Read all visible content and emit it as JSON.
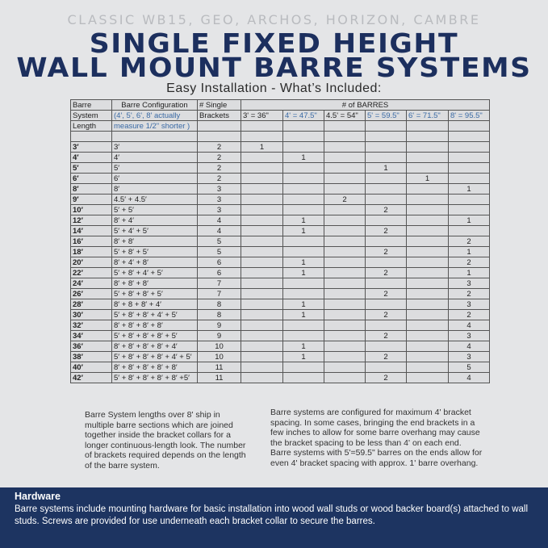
{
  "header": {
    "subtitle": "CLASSIC WB15, GEO, ARCHOS, HORIZON, CAMBRE",
    "title_line1": "SINGLE FIXED HEIGHT",
    "title_line2": "WALL MOUNT BARRE SYSTEMS",
    "section": "Easy Installation - What’s Included:"
  },
  "colors": {
    "navy": "#1c2f5e",
    "blue_text": "#3a6aa5",
    "background": "#e4e5e7"
  },
  "table": {
    "header_rows": [
      [
        "Barre",
        "Barre Configuration",
        "# Single",
        "# of BARRES"
      ],
      [
        "System",
        "(4', 5', 6', 8' actually",
        "Brackets",
        "3' = 36\"",
        "4' = 47.5\"",
        "4.5' = 54\"",
        "5' = 59.5\"",
        "6' = 71.5\"",
        "8' = 95.5\""
      ],
      [
        "Length",
        "measure 1/2\" shorter )"
      ]
    ],
    "rows": [
      [
        "3′",
        "3′",
        "2",
        "1",
        "",
        "",
        "",
        "",
        ""
      ],
      [
        "4′",
        "4′",
        "2",
        "",
        "1",
        "",
        "",
        "",
        ""
      ],
      [
        "5′",
        "5′",
        "2",
        "",
        "",
        "",
        "1",
        "",
        ""
      ],
      [
        "6′",
        "6′",
        "2",
        "",
        "",
        "",
        "",
        "1",
        ""
      ],
      [
        "8′",
        "8′",
        "3",
        "",
        "",
        "",
        "",
        "",
        "1"
      ],
      [
        "9′",
        "4.5′ + 4.5′",
        "3",
        "",
        "",
        "2",
        "",
        "",
        ""
      ],
      [
        "10′",
        "5′ + 5′",
        "3",
        "",
        "",
        "",
        "2",
        "",
        ""
      ],
      [
        "12′",
        "8′ + 4′",
        "4",
        "",
        "1",
        "",
        "",
        "",
        "1"
      ],
      [
        "14′",
        "5′ + 4′ + 5′",
        "4",
        "",
        "1",
        "",
        "2",
        "",
        ""
      ],
      [
        "16′",
        "8′ + 8′",
        "5",
        "",
        "",
        "",
        "",
        "",
        "2"
      ],
      [
        "18′",
        "5′ + 8′ + 5′",
        "5",
        "",
        "",
        "",
        "2",
        "",
        "1"
      ],
      [
        "20′",
        "8′ + 4′ + 8′",
        "6",
        "",
        "1",
        "",
        "",
        "",
        "2"
      ],
      [
        "22′",
        "5′ + 8′ + 4′ + 5′",
        "6",
        "",
        "1",
        "",
        "2",
        "",
        "1"
      ],
      [
        "24′",
        "8′ + 8′ + 8′",
        "7",
        "",
        "",
        "",
        "",
        "",
        "3"
      ],
      [
        "26′",
        "5′ + 8′ + 8′ + 5′",
        "7",
        "",
        "",
        "",
        "2",
        "",
        "2"
      ],
      [
        "28′",
        "8′ + 8 + 8′ + 4′",
        "8",
        "",
        "1",
        "",
        "",
        "",
        "3"
      ],
      [
        "30′",
        "5′ + 8′ + 8′ + 4′ + 5′",
        "8",
        "",
        "1",
        "",
        "2",
        "",
        "2"
      ],
      [
        "32′",
        "8′ + 8′ + 8′ + 8′",
        "9",
        "",
        "",
        "",
        "",
        "",
        "4"
      ],
      [
        "34′",
        "5′ + 8′ + 8′ + 8′ + 5′",
        "9",
        "",
        "",
        "",
        "2",
        "",
        "3"
      ],
      [
        "36′",
        "8′ + 8′ + 8′ + 8′ + 4′",
        "10",
        "",
        "1",
        "",
        "",
        "",
        "4"
      ],
      [
        "38′",
        "5′ + 8′ + 8′ + 8′ + 4′ + 5′",
        "10",
        "",
        "1",
        "",
        "2",
        "",
        "3"
      ],
      [
        "40′",
        "8′ + 8′ + 8′ + 8′ + 8′",
        "11",
        "",
        "",
        "",
        "",
        "",
        "5"
      ],
      [
        "42′",
        "5′ + 8′ + 8′ + 8′ + 8′ +5′",
        "11",
        "",
        "",
        "",
        "2",
        "",
        "4"
      ]
    ]
  },
  "notes": {
    "left": "Barre System lengths over 8' ship in multiple barre sections which are joined together inside the bracket collars for a longer continuous-length look. The number of brackets required depends on the length of the barre system.",
    "right": "Barre systems are configured for maximum 4' bracket spacing.  In some cases, bringing the end brackets in a few inches to allow for some barre overhang may cause the bracket spacing to be less than 4' on each end.  Barre systems with 5'=59.5\" barres on the ends allow for even 4' bracket spacing with approx. 1' barre overhang."
  },
  "footer": {
    "heading": "Hardware",
    "body": "Barre systems include mounting hardware for basic installation into wood wall studs or wood backer board(s) attached to wall studs. Screws are provided for use underneath each bracket collar to secure the barres."
  }
}
